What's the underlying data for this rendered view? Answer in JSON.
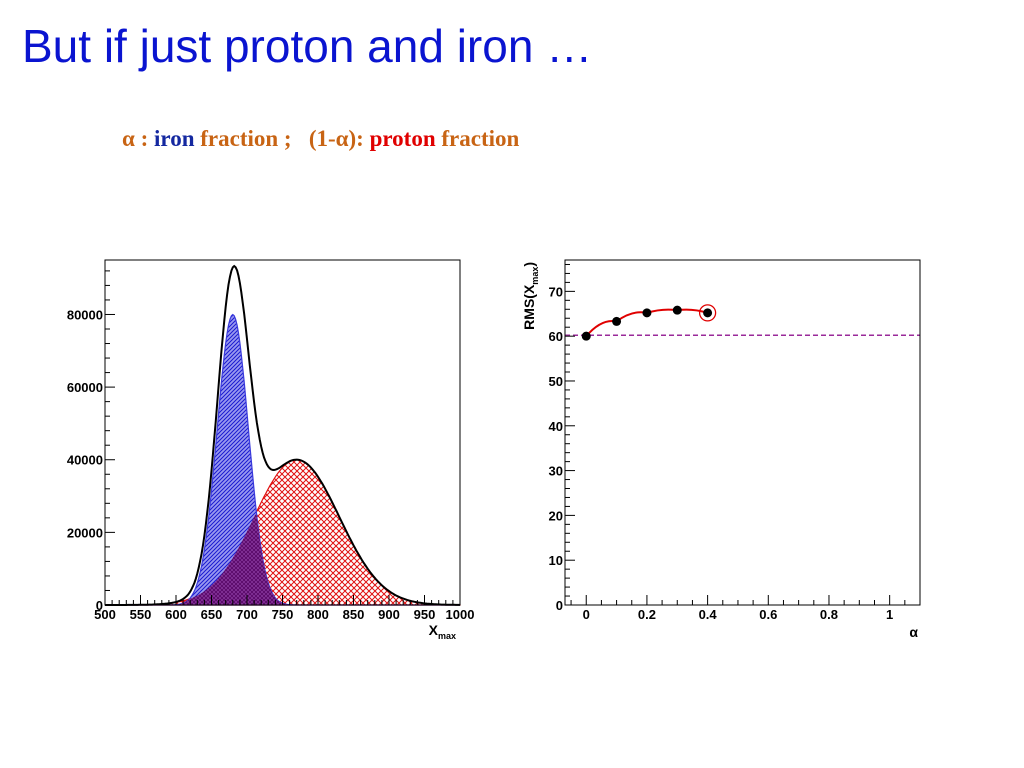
{
  "slide": {
    "title": "But if just proton and iron …",
    "subtitle": {
      "alpha": "α",
      "colon": " : ",
      "iron": "iron",
      "fraction1": " fraction ;   ",
      "one_minus": "(1-",
      "alpha2": "α",
      "close": "): ",
      "proton": "proton",
      "fraction2": " fraction"
    }
  },
  "colors": {
    "title": "#0a14d0",
    "iron": "#3a3adc",
    "proton": "#e01010",
    "overlap": "#6a1a8a",
    "total": "#000000",
    "fit_line": "#e00000",
    "reference_line": "#9a2a9a"
  },
  "chart_data": [
    {
      "type": "area",
      "xlabel": "X",
      "xlabel_sub": "max",
      "xlim": [
        500,
        1000
      ],
      "ylim": [
        0,
        95000
      ],
      "x_ticks": [
        "500",
        "550",
        "600",
        "650",
        "700",
        "750",
        "800",
        "850",
        "900",
        "950",
        "1000"
      ],
      "y_ticks": [
        "0",
        "20000",
        "40000",
        "60000",
        "80000"
      ],
      "series": [
        {
          "name": "iron",
          "shape": "gaussian",
          "peak_x": 680,
          "peak_y": 80000,
          "sigma": 22
        },
        {
          "name": "proton",
          "shape": "gaussian",
          "peak_x": 770,
          "peak_y": 40000,
          "sigma": 60
        },
        {
          "name": "total",
          "shape": "sum",
          "peak_y": 93000
        }
      ]
    },
    {
      "type": "scatter",
      "ylabel": "RMS(X",
      "ylabel_sub": "max",
      "ylabel_close": ")",
      "xlabel": "α",
      "xlim": [
        -0.07,
        1.1
      ],
      "ylim": [
        0,
        77
      ],
      "x_ticks": [
        "0",
        "0.2",
        "0.4",
        "0.6",
        "0.8",
        "1"
      ],
      "y_ticks": [
        "0",
        "10",
        "20",
        "30",
        "40",
        "50",
        "60",
        "70"
      ],
      "reference_y": 60.2,
      "points": [
        {
          "x": 0.0,
          "y": 60.0
        },
        {
          "x": 0.1,
          "y": 63.3
        },
        {
          "x": 0.2,
          "y": 65.2
        },
        {
          "x": 0.3,
          "y": 65.8
        },
        {
          "x": 0.4,
          "y": 65.2
        }
      ],
      "highlighted_point_index": 4
    }
  ]
}
